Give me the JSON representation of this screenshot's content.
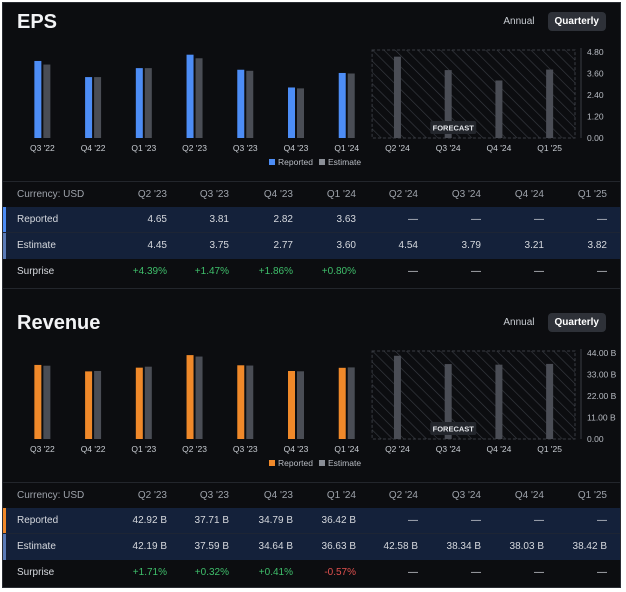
{
  "eps": {
    "title": "EPS",
    "toggle": {
      "annual": "Annual",
      "quarterly": "Quarterly"
    },
    "forecast_label": "FORECAST",
    "table": {
      "currency_label": "Currency: USD",
      "columns": [
        "Q2 '23",
        "Q3 '23",
        "Q4 '23",
        "Q1 '24",
        "Q2 '24",
        "Q3 '24",
        "Q4 '24",
        "Q1 '25"
      ],
      "rows": [
        {
          "label": "Reported",
          "values": [
            "4.65",
            "3.81",
            "2.82",
            "3.63",
            "—",
            "—",
            "—",
            "—"
          ]
        },
        {
          "label": "Estimate",
          "values": [
            "4.45",
            "3.75",
            "2.77",
            "3.60",
            "4.54",
            "3.79",
            "3.21",
            "3.82"
          ]
        },
        {
          "label": "Surprise",
          "values": [
            "+4.39%",
            "+1.47%",
            "+1.86%",
            "+0.80%",
            "—",
            "—",
            "—",
            "—"
          ]
        }
      ]
    }
  },
  "revenue": {
    "title": "Revenue",
    "toggle": {
      "annual": "Annual",
      "quarterly": "Quarterly"
    },
    "forecast_label": "FORECAST",
    "table": {
      "currency_label": "Currency: USD",
      "columns": [
        "Q2 '23",
        "Q3 '23",
        "Q4 '23",
        "Q1 '24",
        "Q2 '24",
        "Q3 '24",
        "Q4 '24",
        "Q1 '25"
      ],
      "rows": [
        {
          "label": "Reported",
          "values": [
            "42.92 B",
            "37.71 B",
            "34.79 B",
            "36.42 B",
            "—",
            "—",
            "—",
            "—"
          ]
        },
        {
          "label": "Estimate",
          "values": [
            "42.19 B",
            "37.59 B",
            "34.64 B",
            "36.63 B",
            "42.58 B",
            "38.34 B",
            "38.03 B",
            "38.42 B"
          ]
        },
        {
          "label": "Surprise",
          "values": [
            "+1.71%",
            "+0.32%",
            "+0.41%",
            "-0.57%",
            "—",
            "—",
            "—",
            "—"
          ]
        }
      ]
    }
  },
  "colors": {
    "eps_reported": "#4d8df6",
    "revenue_reported": "#f0892a",
    "estimate": "#4a4d55",
    "positive": "#3fbf6b",
    "negative": "#e0504e"
  },
  "chart_data": [
    {
      "type": "bar",
      "categories": [
        "Q3 '22",
        "Q4 '22",
        "Q1 '23",
        "Q2 '23",
        "Q3 '23",
        "Q4 '23",
        "Q1 '24",
        "Q2 '24",
        "Q3 '24",
        "Q4 '24",
        "Q1 '25"
      ],
      "series": [
        {
          "name": "Reported",
          "values": [
            4.3,
            3.4,
            3.9,
            4.65,
            3.81,
            2.82,
            3.63,
            null,
            null,
            null,
            null
          ]
        },
        {
          "name": "Estimate",
          "values": [
            4.1,
            3.4,
            3.9,
            4.45,
            3.75,
            2.77,
            3.6,
            4.54,
            3.79,
            3.21,
            3.82
          ]
        }
      ],
      "yticks": [
        "4.80",
        "3.60",
        "2.40",
        "1.20",
        "0.00"
      ],
      "ylim": [
        0,
        4.8
      ],
      "forecast_start": "Q2 '24",
      "legend_position": "bottom"
    },
    {
      "type": "bar",
      "categories": [
        "Q3 '22",
        "Q4 '22",
        "Q1 '23",
        "Q2 '23",
        "Q3 '23",
        "Q4 '23",
        "Q1 '24",
        "Q2 '24",
        "Q3 '24",
        "Q4 '24",
        "Q1 '25"
      ],
      "series": [
        {
          "name": "Reported",
          "values": [
            37.9,
            34.6,
            36.5,
            42.92,
            37.71,
            34.79,
            36.42,
            null,
            null,
            null,
            null
          ]
        },
        {
          "name": "Estimate",
          "values": [
            37.5,
            34.8,
            37.0,
            42.19,
            37.59,
            34.64,
            36.63,
            42.58,
            38.34,
            38.03,
            38.42
          ]
        }
      ],
      "yticks": [
        "44.00 B",
        "33.00 B",
        "22.00 B",
        "11.00 B",
        "0.00"
      ],
      "ylim": [
        0,
        44
      ],
      "forecast_start": "Q2 '24",
      "legend_position": "bottom"
    }
  ]
}
